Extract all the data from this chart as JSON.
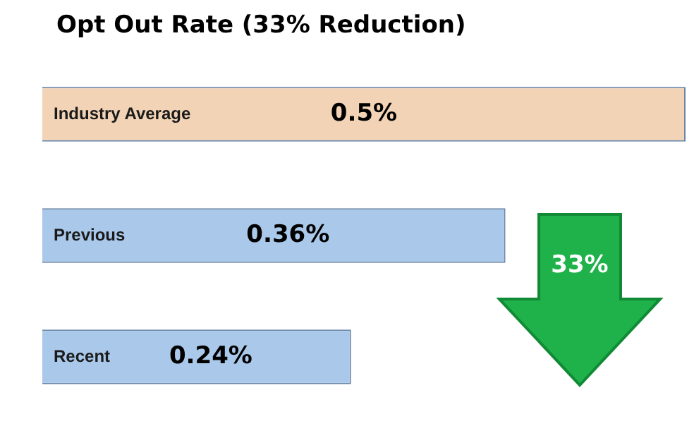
{
  "chart_data": {
    "type": "bar",
    "orientation": "horizontal",
    "title": "Opt Out Rate (33% Reduction)",
    "categories": [
      "Industry Average",
      "Previous",
      "Recent"
    ],
    "values": [
      0.5,
      0.36,
      0.24
    ],
    "colors": [
      "#f2d3b6",
      "#a9c8ea",
      "#a9c8ea"
    ],
    "value_labels": [
      "0.5%",
      "0.36%",
      "0.24%"
    ],
    "annotations": [
      "33%"
    ]
  }
}
